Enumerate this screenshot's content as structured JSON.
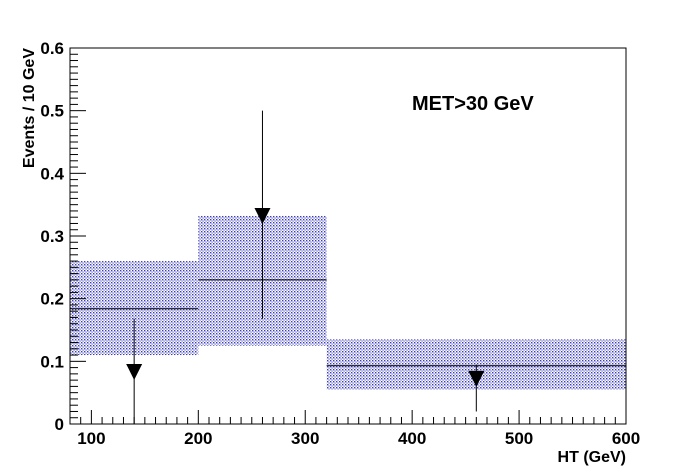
{
  "chart_data": {
    "type": "bar",
    "xlabel": "HT (GeV)",
    "ylabel": "Events / 10 GeV",
    "annotation": "MET>30 GeV",
    "xlim": [
      80,
      600
    ],
    "ylim": [
      0,
      0.6
    ],
    "x_ticks": [
      100,
      200,
      300,
      400,
      500,
      600
    ],
    "y_ticks": [
      0,
      0.1,
      0.2,
      0.3,
      0.4,
      0.5,
      0.6
    ],
    "grid": false,
    "hatch_color": "#3b3bb5",
    "bins": [
      {
        "low": 80,
        "high": 200,
        "value": 0.184,
        "band_low": 0.11,
        "band_high": 0.26
      },
      {
        "low": 200,
        "high": 320,
        "value": 0.23,
        "band_low": 0.125,
        "band_high": 0.332
      },
      {
        "low": 320,
        "high": 600,
        "value": 0.093,
        "band_low": 0.055,
        "band_high": 0.135
      }
    ],
    "upper_limits": [
      {
        "x": 140,
        "y": 0.083,
        "err_low": 0,
        "err_high": 0.168
      },
      {
        "x": 260,
        "y": 0.332,
        "err_low": 0.168,
        "err_high": 0.5
      },
      {
        "x": 460,
        "y": 0.072,
        "err_low": 0.02,
        "err_high": 0.095
      }
    ]
  }
}
